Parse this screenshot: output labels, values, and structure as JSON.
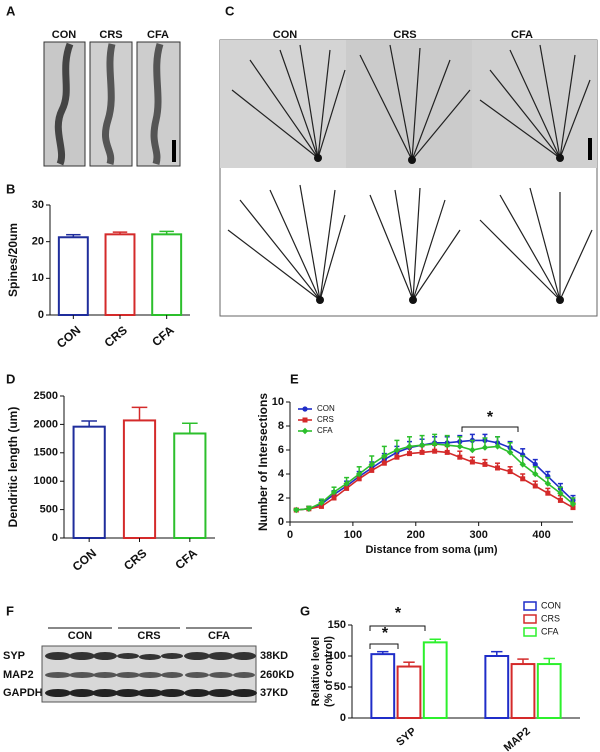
{
  "figure": {
    "A": {
      "panel": "A",
      "labels": [
        "CON",
        "CRS",
        "CFA"
      ]
    },
    "C": {
      "panel": "C",
      "labels": [
        "CON",
        "CRS",
        "CFA"
      ]
    },
    "F": {
      "panel": "F",
      "groups": [
        "CON",
        "CRS",
        "CFA"
      ],
      "rows": [
        "SYP",
        "MAP2",
        "GAPDH"
      ],
      "sizes": [
        "38KD",
        "260KD",
        "37KD"
      ]
    }
  },
  "chart_data": [
    {
      "type": "bar",
      "panel": "B",
      "ylabel": "Spines/20um",
      "categories": [
        "CON",
        "CRS",
        "CFA"
      ],
      "values": [
        21.2,
        22,
        22
      ],
      "errors": [
        0.7,
        0.6,
        0.8
      ],
      "colors": [
        "#1f2d9c",
        "#d42a2a",
        "#2cbf2c"
      ],
      "ylim": [
        0,
        30
      ],
      "yticks": [
        0,
        10,
        20,
        30
      ]
    },
    {
      "type": "bar",
      "panel": "D",
      "ylabel": "Dendritic length (um)",
      "categories": [
        "CON",
        "CRS",
        "CFA"
      ],
      "values": [
        1960,
        2070,
        1840
      ],
      "errors": [
        100,
        230,
        180
      ],
      "colors": [
        "#1f2d9c",
        "#d42a2a",
        "#2cbf2c"
      ],
      "ylim": [
        0,
        2500
      ],
      "yticks": [
        0,
        500,
        1000,
        1500,
        2000,
        2500
      ]
    },
    {
      "type": "line",
      "panel": "E",
      "ylabel": "Number of Intersections",
      "xlabel": "Distance from soma (μm)",
      "x": [
        10,
        30,
        50,
        70,
        90,
        110,
        130,
        150,
        170,
        190,
        210,
        230,
        250,
        270,
        290,
        310,
        330,
        350,
        370,
        390,
        410,
        430,
        450
      ],
      "series": [
        {
          "name": "CON",
          "color": "#1f2dc8",
          "values": [
            1,
            1.1,
            1.5,
            2.3,
            3,
            3.8,
            4.5,
            5.2,
            5.8,
            6.2,
            6.4,
            6.6,
            6.6,
            6.7,
            6.8,
            6.8,
            6.6,
            6.2,
            5.6,
            4.8,
            3.8,
            2.8,
            1.8
          ],
          "errors": [
            0.1,
            0.2,
            0.3,
            0.3,
            0.4,
            0.4,
            0.5,
            0.5,
            0.5,
            0.5,
            0.5,
            0.5,
            0.5,
            0.5,
            0.5,
            0.5,
            0.5,
            0.5,
            0.5,
            0.4,
            0.4,
            0.4,
            0.4
          ]
        },
        {
          "name": "CRS",
          "color": "#d42a2a",
          "values": [
            1,
            1.1,
            1.3,
            2,
            2.8,
            3.6,
            4.3,
            4.9,
            5.4,
            5.7,
            5.8,
            5.9,
            5.8,
            5.4,
            5,
            4.8,
            4.5,
            4.2,
            3.6,
            3,
            2.4,
            1.8,
            1.2
          ],
          "errors": [
            0.1,
            0.2,
            0.3,
            0.3,
            0.4,
            0.4,
            0.5,
            0.5,
            0.5,
            0.5,
            0.5,
            0.5,
            0.5,
            0.5,
            0.4,
            0.4,
            0.4,
            0.4,
            0.4,
            0.4,
            0.4,
            0.4,
            0.4
          ]
        },
        {
          "name": "CFA",
          "color": "#2cbf2c",
          "values": [
            1,
            1.1,
            1.6,
            2.5,
            3.2,
            4,
            4.8,
            5.5,
            6,
            6.3,
            6.4,
            6.5,
            6.4,
            6.3,
            6,
            6.2,
            6.3,
            5.8,
            4.8,
            4,
            3.2,
            2.4,
            1.5
          ],
          "errors": [
            0.1,
            0.2,
            0.3,
            0.4,
            0.5,
            0.6,
            0.7,
            0.8,
            0.8,
            0.8,
            0.8,
            0.8,
            0.8,
            0.8,
            0.8,
            0.8,
            0.8,
            0.8,
            0.7,
            0.6,
            0.5,
            0.5,
            0.5
          ]
        }
      ],
      "xlim": [
        0,
        450
      ],
      "xticks": [
        0,
        100,
        200,
        300,
        400
      ],
      "ylim": [
        0,
        10
      ],
      "yticks": [
        0,
        2,
        4,
        6,
        8,
        10
      ],
      "legend": "upper left",
      "annotations": [
        "*"
      ]
    },
    {
      "type": "grouped_bar",
      "panel": "G",
      "ylabel": [
        "Relative level",
        "(% of control)"
      ],
      "categories": [
        "SYP",
        "MAP2"
      ],
      "series": [
        {
          "name": "CON",
          "color": "#1f2dc8",
          "values": [
            103,
            100
          ],
          "errors": [
            4,
            7
          ]
        },
        {
          "name": "CRS",
          "color": "#d42a2a",
          "values": [
            83,
            87
          ],
          "errors": [
            7,
            8
          ]
        },
        {
          "name": "CFA",
          "color": "#2cf02c",
          "values": [
            122,
            87
          ],
          "errors": [
            5,
            9
          ]
        }
      ],
      "ylim": [
        0,
        150
      ],
      "yticks": [
        0,
        50,
        100,
        150
      ],
      "legend": "upper right",
      "annotations": [
        "*",
        "*"
      ]
    }
  ]
}
